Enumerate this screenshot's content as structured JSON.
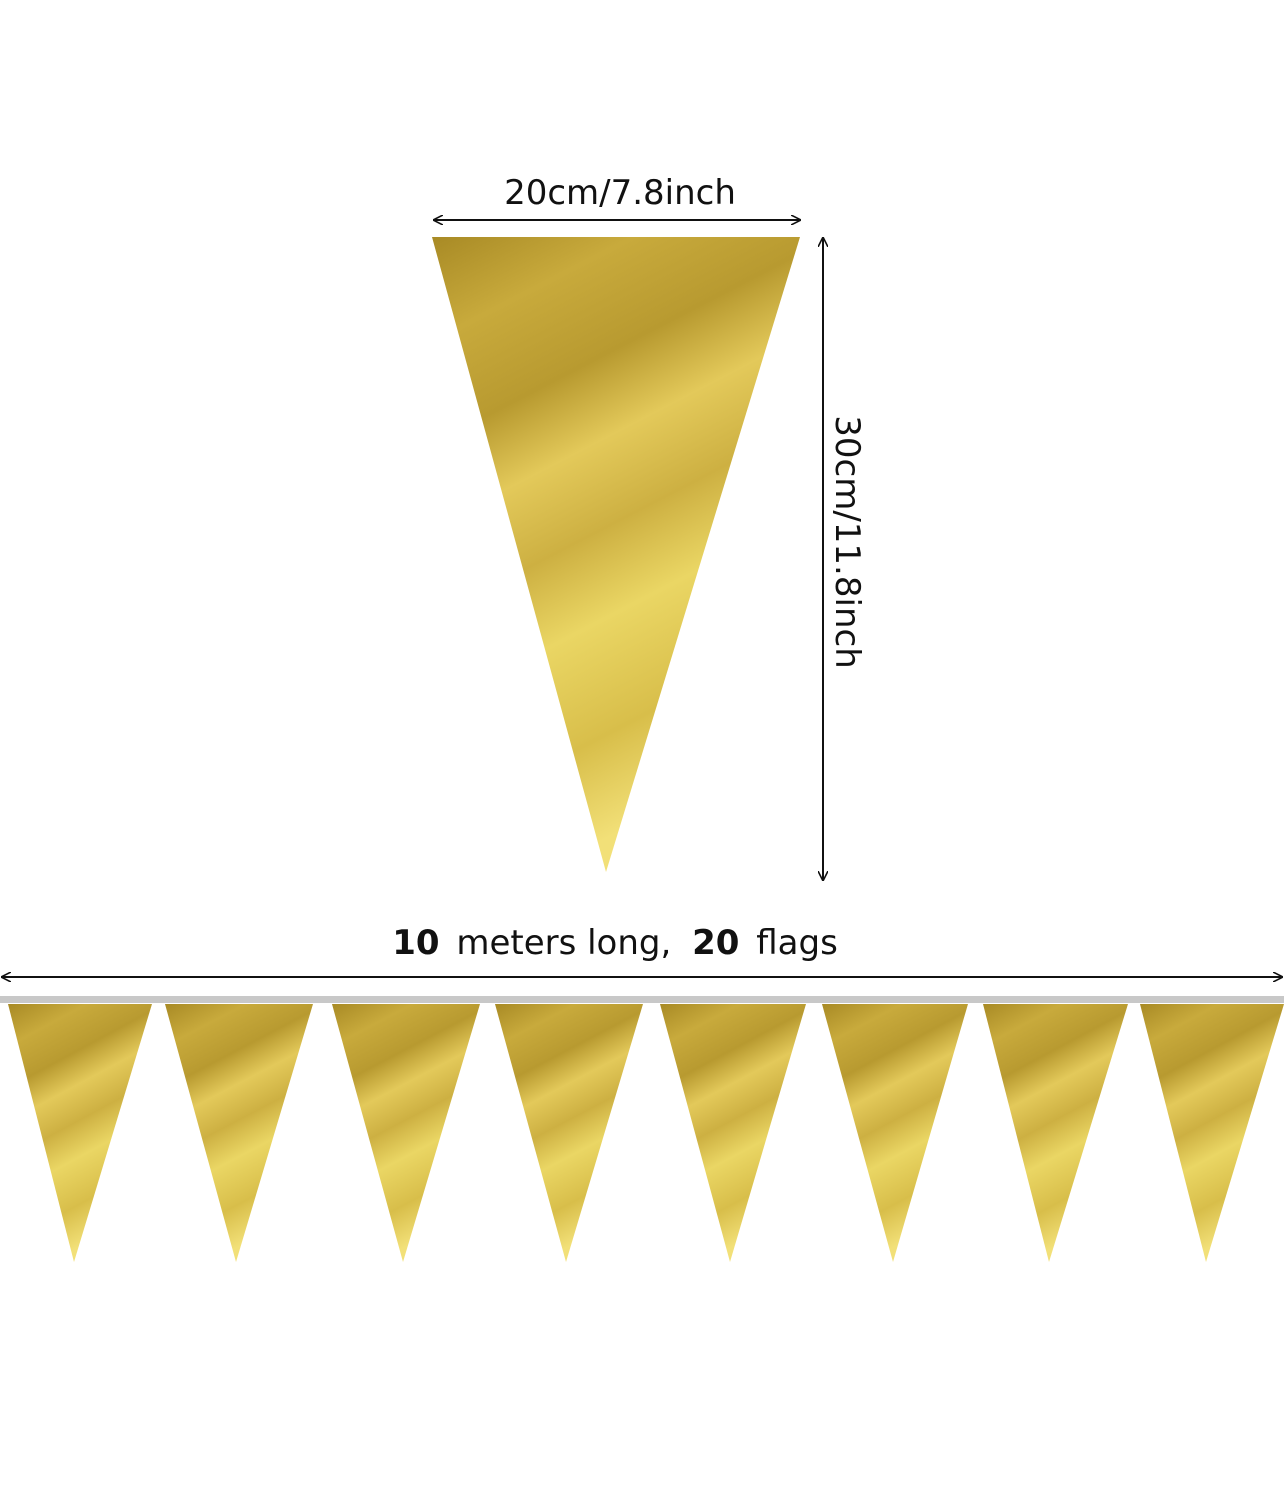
{
  "dimensions": {
    "width": "20cm/7.8inch",
    "height": "30cm/11.8inch"
  },
  "length_label": {
    "parts": [
      "10",
      "meters long,",
      "20",
      "flags"
    ]
  }
}
